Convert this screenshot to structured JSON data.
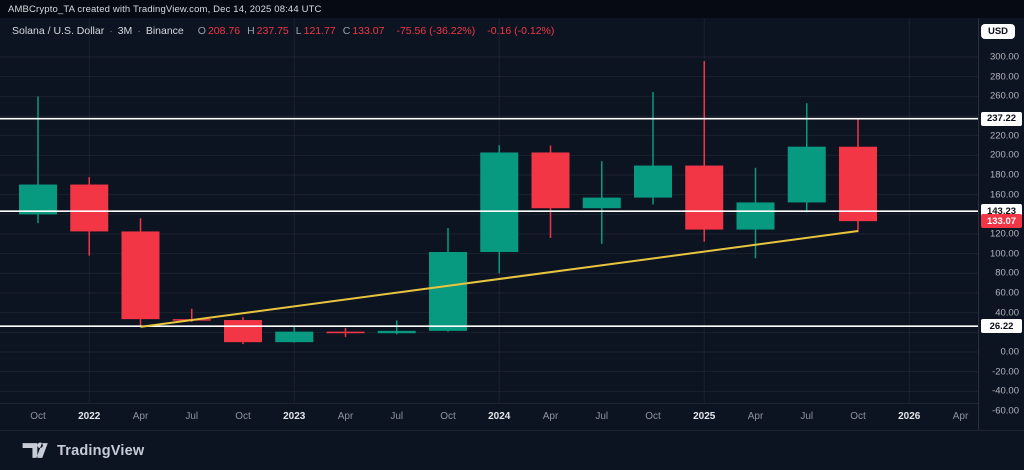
{
  "attribution": "AMBCrypto_TA created with TradingView.com, Dec 14, 2025 08:44 UTC",
  "legend": {
    "symbol": "Solana / U.S. Dollar",
    "separator": "·",
    "interval": "3M",
    "exchange": "Binance",
    "ohlc": [
      {
        "label": "O",
        "value": "208.76"
      },
      {
        "label": "H",
        "value": "237.75"
      },
      {
        "label": "L",
        "value": "121.77"
      },
      {
        "label": "C",
        "value": "133.07"
      }
    ],
    "change": "-75.56 (-36.22%)",
    "change_secondary": "-0.16 (-0.12%)"
  },
  "currency_button": "USD",
  "footer": {
    "logo_text": "TradingView"
  },
  "chart_data": {
    "type": "candlestick",
    "title": "Solana / U.S. Dollar · 3M · Binance",
    "x_ticks": [
      {
        "i": 0,
        "label": "Oct"
      },
      {
        "i": 1,
        "label": "2022",
        "year": true
      },
      {
        "i": 2,
        "label": "Apr"
      },
      {
        "i": 3,
        "label": "Jul"
      },
      {
        "i": 4,
        "label": "Oct"
      },
      {
        "i": 5,
        "label": "2023",
        "year": true
      },
      {
        "i": 6,
        "label": "Apr"
      },
      {
        "i": 7,
        "label": "Jul"
      },
      {
        "i": 8,
        "label": "Oct"
      },
      {
        "i": 9,
        "label": "2024",
        "year": true
      },
      {
        "i": 10,
        "label": "Apr"
      },
      {
        "i": 11,
        "label": "Jul"
      },
      {
        "i": 12,
        "label": "Oct"
      },
      {
        "i": 13,
        "label": "2025",
        "year": true
      },
      {
        "i": 14,
        "label": "Apr"
      },
      {
        "i": 15,
        "label": "Jul"
      },
      {
        "i": 16,
        "label": "Oct"
      },
      {
        "i": 17,
        "label": "2026",
        "year": true
      },
      {
        "i": 18,
        "label": "Apr"
      }
    ],
    "candles": [
      {
        "t": "2021-10",
        "o": 140.0,
        "h": 259.9,
        "l": 131.0,
        "c": 170.3
      },
      {
        "t": "2022-01",
        "o": 170.3,
        "h": 177.8,
        "l": 98.0,
        "c": 122.6
      },
      {
        "t": "2022-04",
        "o": 122.6,
        "h": 136.0,
        "l": 25.8,
        "c": 33.4
      },
      {
        "t": "2022-07",
        "o": 33.4,
        "h": 44.0,
        "l": 30.5,
        "c": 32.5
      },
      {
        "t": "2022-10",
        "o": 32.5,
        "h": 35.4,
        "l": 8.0,
        "c": 10.0
      },
      {
        "t": "2023-01",
        "o": 10.0,
        "h": 27.1,
        "l": 9.6,
        "c": 20.7
      },
      {
        "t": "2023-04",
        "o": 20.7,
        "h": 24.5,
        "l": 15.3,
        "c": 19.1
      },
      {
        "t": "2023-07",
        "o": 19.1,
        "h": 32.1,
        "l": 17.9,
        "c": 21.5
      },
      {
        "t": "2023-10",
        "o": 21.5,
        "h": 126.0,
        "l": 20.7,
        "c": 101.7
      },
      {
        "t": "2024-01",
        "o": 101.7,
        "h": 210.2,
        "l": 80.0,
        "c": 202.9
      },
      {
        "t": "2024-04",
        "o": 202.9,
        "h": 210.0,
        "l": 116.0,
        "c": 146.2
      },
      {
        "t": "2024-07",
        "o": 146.2,
        "h": 194.0,
        "l": 110.0,
        "c": 157.0
      },
      {
        "t": "2024-10",
        "o": 157.0,
        "h": 264.5,
        "l": 150.0,
        "c": 189.6
      },
      {
        "t": "2025-01",
        "o": 189.6,
        "h": 295.8,
        "l": 112.2,
        "c": 124.5
      },
      {
        "t": "2025-04",
        "o": 124.5,
        "h": 187.3,
        "l": 95.3,
        "c": 152.1
      },
      {
        "t": "2025-07",
        "o": 152.1,
        "h": 253.0,
        "l": 142.0,
        "c": 208.8
      },
      {
        "t": "2025-10",
        "o": 208.76,
        "h": 237.75,
        "l": 121.77,
        "c": 133.07
      }
    ],
    "levels": [
      237.22,
      143.23,
      26.22
    ],
    "last_price": 133.07,
    "trendline": {
      "from": {
        "index": 2,
        "price": 25.5
      },
      "to": {
        "index": 16,
        "price": 123.0
      }
    },
    "y_ticks": [
      300,
      280,
      260,
      240,
      220,
      200,
      180,
      160,
      140,
      120,
      100,
      80,
      60,
      40,
      20,
      0,
      -20,
      -40,
      -60
    ],
    "y_range": [
      -60,
      300
    ],
    "year_grid_indices": [
      1,
      5,
      9,
      13,
      17
    ],
    "colors": {
      "background": "#0d1421",
      "up": "#089981",
      "down": "#f23645",
      "trendline": "#e8c53f",
      "level_line": "#ffffff",
      "level_label_bg": "#ffffff",
      "level_label_text": "#0b0e14",
      "last_price_bg": "#f23645",
      "grid": "rgba(255,255,255,0.06)",
      "axis_text": "#b2b5be"
    }
  }
}
